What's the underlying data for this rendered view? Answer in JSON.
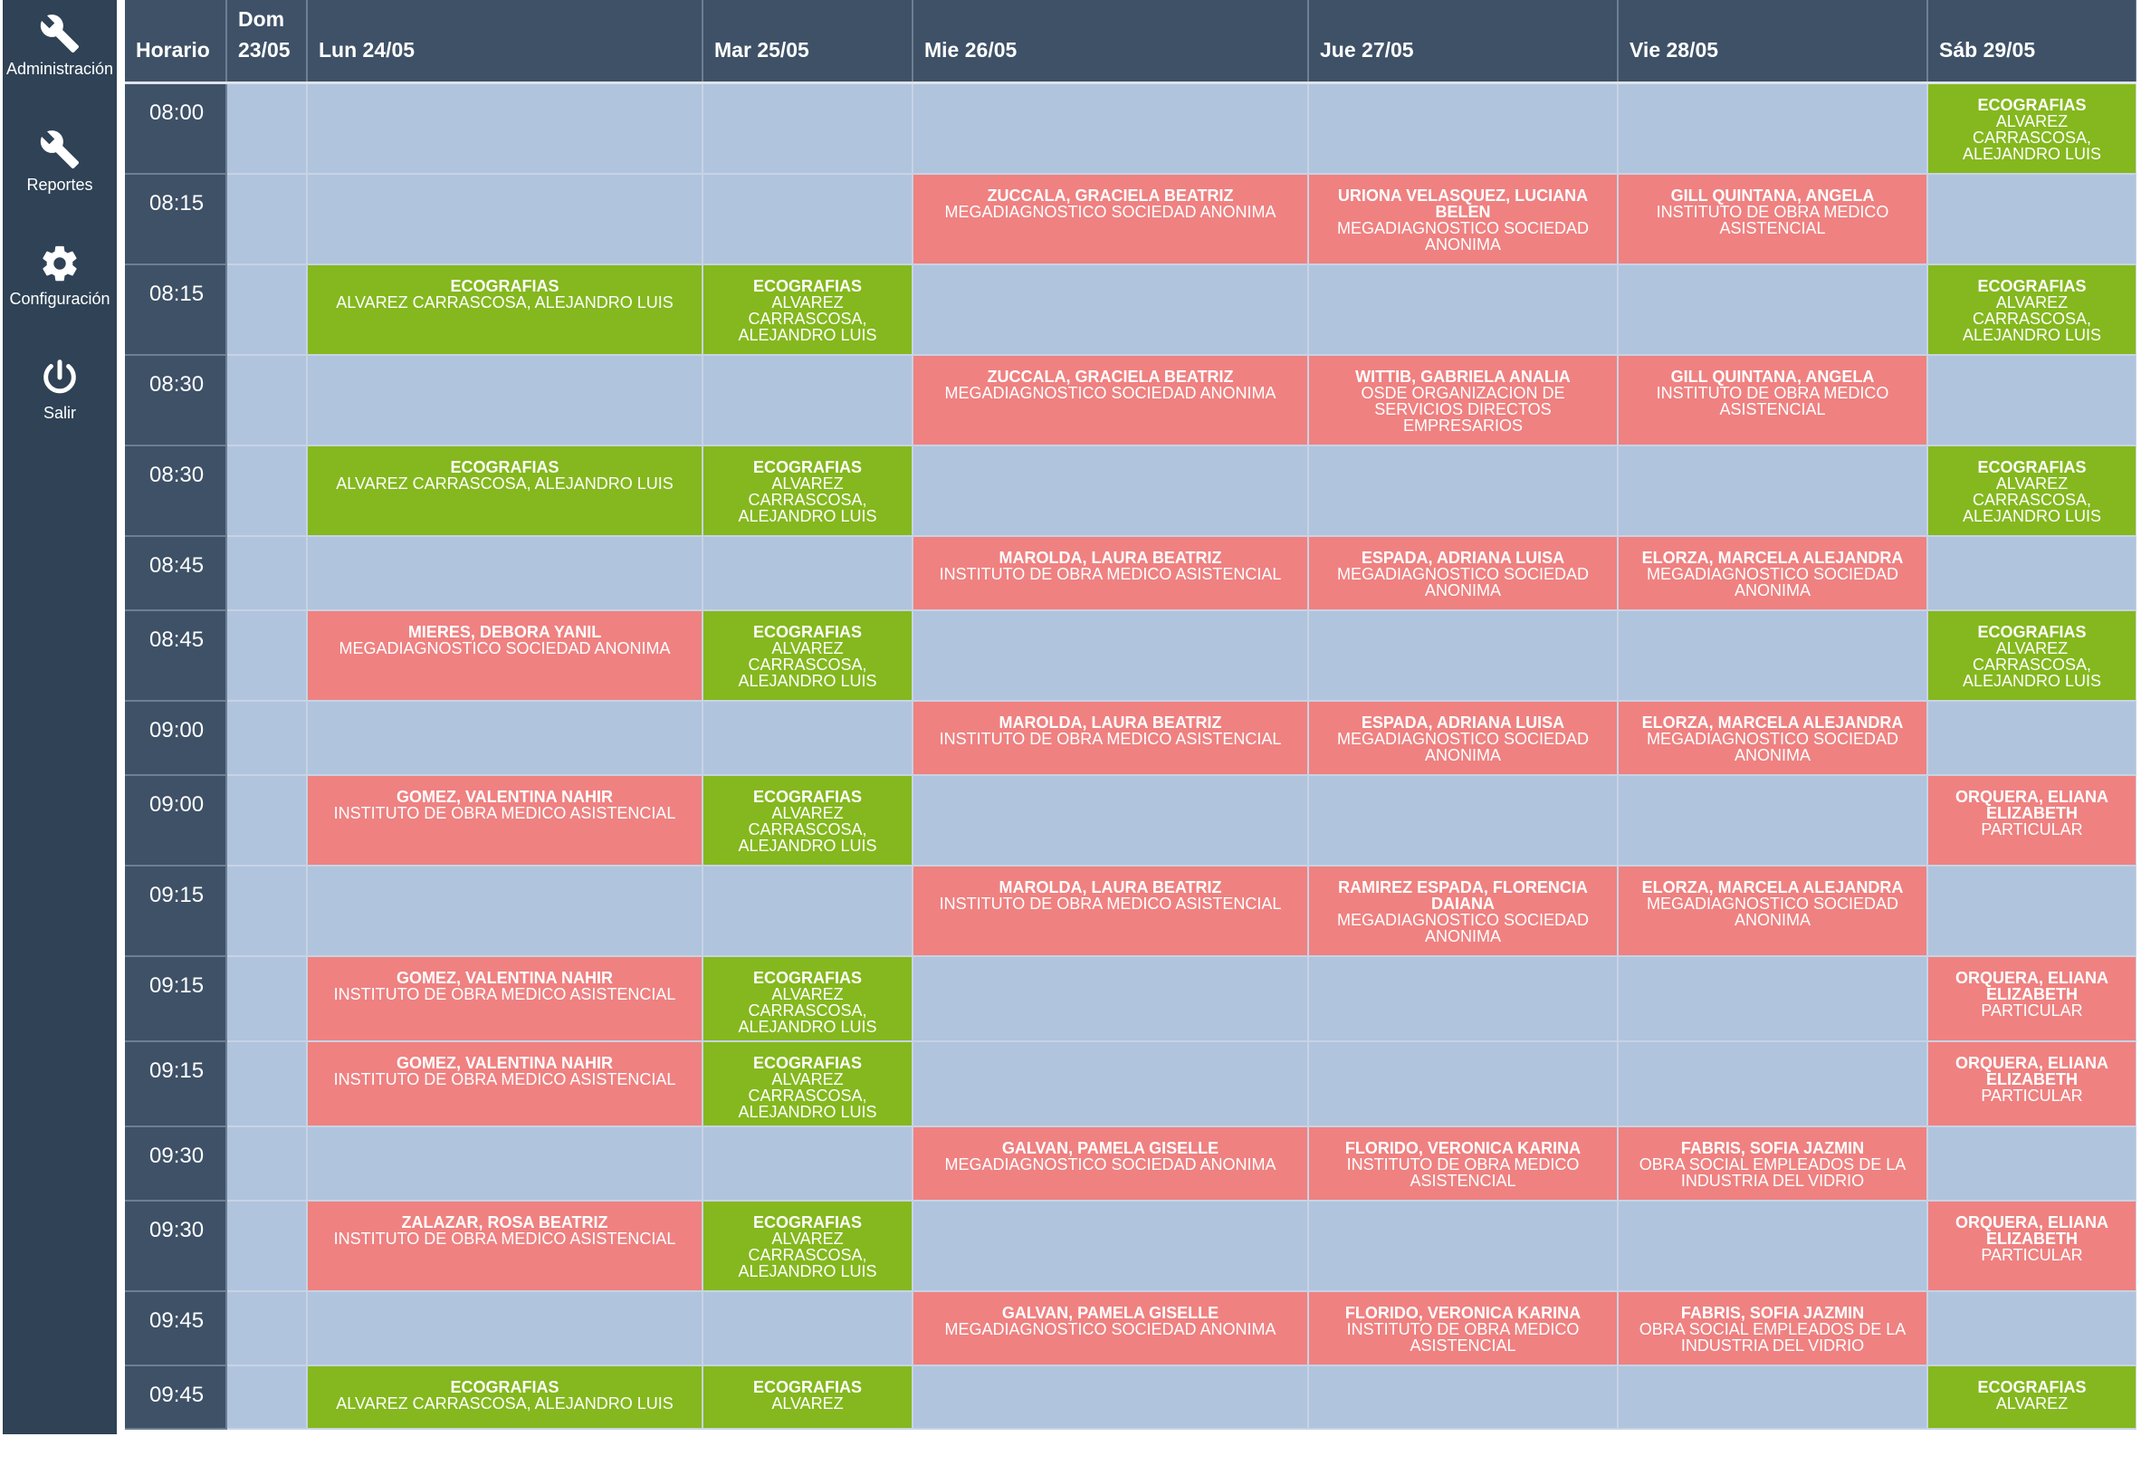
{
  "colors": {
    "sidebar": "#2f4256",
    "header": "#3e5167",
    "empty": "#b0c4de",
    "ecografia": "#84b81e",
    "paciente": "#ef8181"
  },
  "nav": [
    {
      "label": "Administración",
      "icon": "wrench-icon"
    },
    {
      "label": "Reportes",
      "icon": "wrench-icon"
    },
    {
      "label": "Configuración",
      "icon": "gear-icon"
    },
    {
      "label": "Salir",
      "icon": "power-icon"
    }
  ],
  "header": {
    "horario": "Horario",
    "days": [
      {
        "line1": "Dom",
        "line2": "23/05"
      },
      {
        "line1": "Lun 24/05",
        "line2": ""
      },
      {
        "line1": "Mar 25/05",
        "line2": ""
      },
      {
        "line1": "Mie 26/05",
        "line2": ""
      },
      {
        "line1": "Jue 27/05",
        "line2": ""
      },
      {
        "line1": "Vie 28/05",
        "line2": ""
      },
      {
        "line1": "Sáb 29/05",
        "line2": ""
      }
    ]
  },
  "rows": [
    {
      "time": "08:00",
      "cells": [
        null,
        null,
        null,
        null,
        null,
        null,
        {
          "type": "green",
          "title": "ECOGRAFIAS",
          "sub": "ALVAREZ CARRASCOSA, ALEJANDRO LUIS"
        }
      ]
    },
    {
      "time": "08:15",
      "cells": [
        null,
        null,
        null,
        {
          "type": "red",
          "title": "ZUCCALA, GRACIELA BEATRIZ",
          "sub": "MEGADIAGNOSTICO SOCIEDAD ANONIMA"
        },
        {
          "type": "red",
          "title": "URIONA VELASQUEZ, LUCIANA BELEN",
          "sub": "MEGADIAGNOSTICO SOCIEDAD ANONIMA"
        },
        {
          "type": "red",
          "title": "GILL QUINTANA, ANGELA",
          "sub": "INSTITUTO DE OBRA MEDICO ASISTENCIAL"
        },
        null
      ]
    },
    {
      "time": "08:15",
      "cells": [
        null,
        {
          "type": "green",
          "title": "ECOGRAFIAS",
          "sub": "ALVAREZ CARRASCOSA, ALEJANDRO LUIS"
        },
        {
          "type": "green",
          "title": "ECOGRAFIAS",
          "sub": "ALVAREZ CARRASCOSA, ALEJANDRO LUIS"
        },
        null,
        null,
        null,
        {
          "type": "green",
          "title": "ECOGRAFIAS",
          "sub": "ALVAREZ CARRASCOSA, ALEJANDRO LUIS"
        }
      ]
    },
    {
      "time": "08:30",
      "cells": [
        null,
        null,
        null,
        {
          "type": "red",
          "title": "ZUCCALA, GRACIELA BEATRIZ",
          "sub": "MEGADIAGNOSTICO SOCIEDAD ANONIMA"
        },
        {
          "type": "red",
          "title": "WITTIB, GABRIELA ANALIA",
          "sub": "OSDE ORGANIZACION DE SERVICIOS DIRECTOS EMPRESARIOS"
        },
        {
          "type": "red",
          "title": "GILL QUINTANA, ANGELA",
          "sub": "INSTITUTO DE OBRA MEDICO ASISTENCIAL"
        },
        null
      ]
    },
    {
      "time": "08:30",
      "cells": [
        null,
        {
          "type": "green",
          "title": "ECOGRAFIAS",
          "sub": "ALVAREZ CARRASCOSA, ALEJANDRO LUIS"
        },
        {
          "type": "green",
          "title": "ECOGRAFIAS",
          "sub": "ALVAREZ CARRASCOSA, ALEJANDRO LUIS"
        },
        null,
        null,
        null,
        {
          "type": "green",
          "title": "ECOGRAFIAS",
          "sub": "ALVAREZ CARRASCOSA, ALEJANDRO LUIS"
        }
      ]
    },
    {
      "time": "08:45",
      "cells": [
        null,
        null,
        null,
        {
          "type": "red",
          "title": "MAROLDA, LAURA BEATRIZ",
          "sub": "INSTITUTO DE OBRA MEDICO ASISTENCIAL"
        },
        {
          "type": "red",
          "title": "ESPADA, ADRIANA LUISA",
          "sub": "MEGADIAGNOSTICO SOCIEDAD ANONIMA"
        },
        {
          "type": "red",
          "title": "ELORZA, MARCELA ALEJANDRA",
          "sub": "MEGADIAGNOSTICO SOCIEDAD ANONIMA"
        },
        null
      ]
    },
    {
      "time": "08:45",
      "cells": [
        null,
        {
          "type": "red",
          "title": "MIERES, DEBORA YANIL",
          "sub": "MEGADIAGNOSTICO SOCIEDAD ANONIMA"
        },
        {
          "type": "green",
          "title": "ECOGRAFIAS",
          "sub": "ALVAREZ CARRASCOSA, ALEJANDRO LUIS"
        },
        null,
        null,
        null,
        {
          "type": "green",
          "title": "ECOGRAFIAS",
          "sub": "ALVAREZ CARRASCOSA, ALEJANDRO LUIS"
        }
      ]
    },
    {
      "time": "09:00",
      "cells": [
        null,
        null,
        null,
        {
          "type": "red",
          "title": "MAROLDA, LAURA BEATRIZ",
          "sub": "INSTITUTO DE OBRA MEDICO ASISTENCIAL"
        },
        {
          "type": "red",
          "title": "ESPADA, ADRIANA LUISA",
          "sub": "MEGADIAGNOSTICO SOCIEDAD ANONIMA"
        },
        {
          "type": "red",
          "title": "ELORZA, MARCELA ALEJANDRA",
          "sub": "MEGADIAGNOSTICO SOCIEDAD ANONIMA"
        },
        null
      ]
    },
    {
      "time": "09:00",
      "cells": [
        null,
        {
          "type": "red",
          "title": "GOMEZ, VALENTINA NAHIR",
          "sub": "INSTITUTO DE OBRA MEDICO ASISTENCIAL"
        },
        {
          "type": "green",
          "title": "ECOGRAFIAS",
          "sub": "ALVAREZ CARRASCOSA, ALEJANDRO LUIS"
        },
        null,
        null,
        null,
        {
          "type": "red",
          "title": "ORQUERA, ELIANA ELIZABETH",
          "sub": "PARTICULAR"
        }
      ]
    },
    {
      "time": "09:15",
      "cells": [
        null,
        null,
        null,
        {
          "type": "red",
          "title": "MAROLDA, LAURA BEATRIZ",
          "sub": "INSTITUTO DE OBRA MEDICO ASISTENCIAL"
        },
        {
          "type": "red",
          "title": "RAMIREZ ESPADA, FLORENCIA DAIANA",
          "sub": "MEGADIAGNOSTICO SOCIEDAD ANONIMA"
        },
        {
          "type": "red",
          "title": "ELORZA, MARCELA ALEJANDRA",
          "sub": "MEGADIAGNOSTICO SOCIEDAD ANONIMA"
        },
        null
      ]
    },
    {
      "time": "09:15",
      "cells": [
        null,
        {
          "type": "red",
          "title": "GOMEZ, VALENTINA NAHIR",
          "sub": "INSTITUTO DE OBRA MEDICO ASISTENCIAL"
        },
        {
          "type": "green",
          "title": "ECOGRAFIAS",
          "sub": "ALVAREZ CARRASCOSA, ALEJANDRO LUIS"
        },
        null,
        null,
        null,
        {
          "type": "red",
          "title": "ORQUERA, ELIANA ELIZABETH",
          "sub": "PARTICULAR"
        }
      ]
    },
    {
      "time": "09:15",
      "cells": [
        null,
        {
          "type": "red",
          "title": "GOMEZ, VALENTINA NAHIR",
          "sub": "INSTITUTO DE OBRA MEDICO ASISTENCIAL"
        },
        {
          "type": "green",
          "title": "ECOGRAFIAS",
          "sub": "ALVAREZ CARRASCOSA, ALEJANDRO LUIS"
        },
        null,
        null,
        null,
        {
          "type": "red",
          "title": "ORQUERA, ELIANA ELIZABETH",
          "sub": "PARTICULAR"
        }
      ]
    },
    {
      "time": "09:30",
      "cells": [
        null,
        null,
        null,
        {
          "type": "red",
          "title": "GALVAN, PAMELA GISELLE",
          "sub": "MEGADIAGNOSTICO SOCIEDAD ANONIMA"
        },
        {
          "type": "red",
          "title": "FLORIDO, VERONICA KARINA",
          "sub": "INSTITUTO DE OBRA MEDICO ASISTENCIAL"
        },
        {
          "type": "red",
          "title": "FABRIS, SOFIA JAZMIN",
          "sub": "OBRA SOCIAL EMPLEADOS DE LA INDUSTRIA DEL VIDRIO"
        },
        null
      ]
    },
    {
      "time": "09:30",
      "cells": [
        null,
        {
          "type": "red",
          "title": "ZALAZAR, ROSA BEATRIZ",
          "sub": "INSTITUTO DE OBRA MEDICO ASISTENCIAL"
        },
        {
          "type": "green",
          "title": "ECOGRAFIAS",
          "sub": "ALVAREZ CARRASCOSA, ALEJANDRO LUIS"
        },
        null,
        null,
        null,
        {
          "type": "red",
          "title": "ORQUERA, ELIANA ELIZABETH",
          "sub": "PARTICULAR"
        }
      ]
    },
    {
      "time": "09:45",
      "cells": [
        null,
        null,
        null,
        {
          "type": "red",
          "title": "GALVAN, PAMELA GISELLE",
          "sub": "MEGADIAGNOSTICO SOCIEDAD ANONIMA"
        },
        {
          "type": "red",
          "title": "FLORIDO, VERONICA KARINA",
          "sub": "INSTITUTO DE OBRA MEDICO ASISTENCIAL"
        },
        {
          "type": "red",
          "title": "FABRIS, SOFIA JAZMIN",
          "sub": "OBRA SOCIAL EMPLEADOS DE LA INDUSTRIA DEL VIDRIO"
        },
        null
      ]
    },
    {
      "time": "09:45",
      "cells": [
        null,
        {
          "type": "green",
          "title": "ECOGRAFIAS",
          "sub": "ALVAREZ CARRASCOSA, ALEJANDRO LUIS"
        },
        {
          "type": "green",
          "title": "ECOGRAFIAS",
          "sub": "ALVAREZ"
        },
        null,
        null,
        null,
        {
          "type": "green",
          "title": "ECOGRAFIAS",
          "sub": "ALVAREZ"
        }
      ]
    }
  ]
}
